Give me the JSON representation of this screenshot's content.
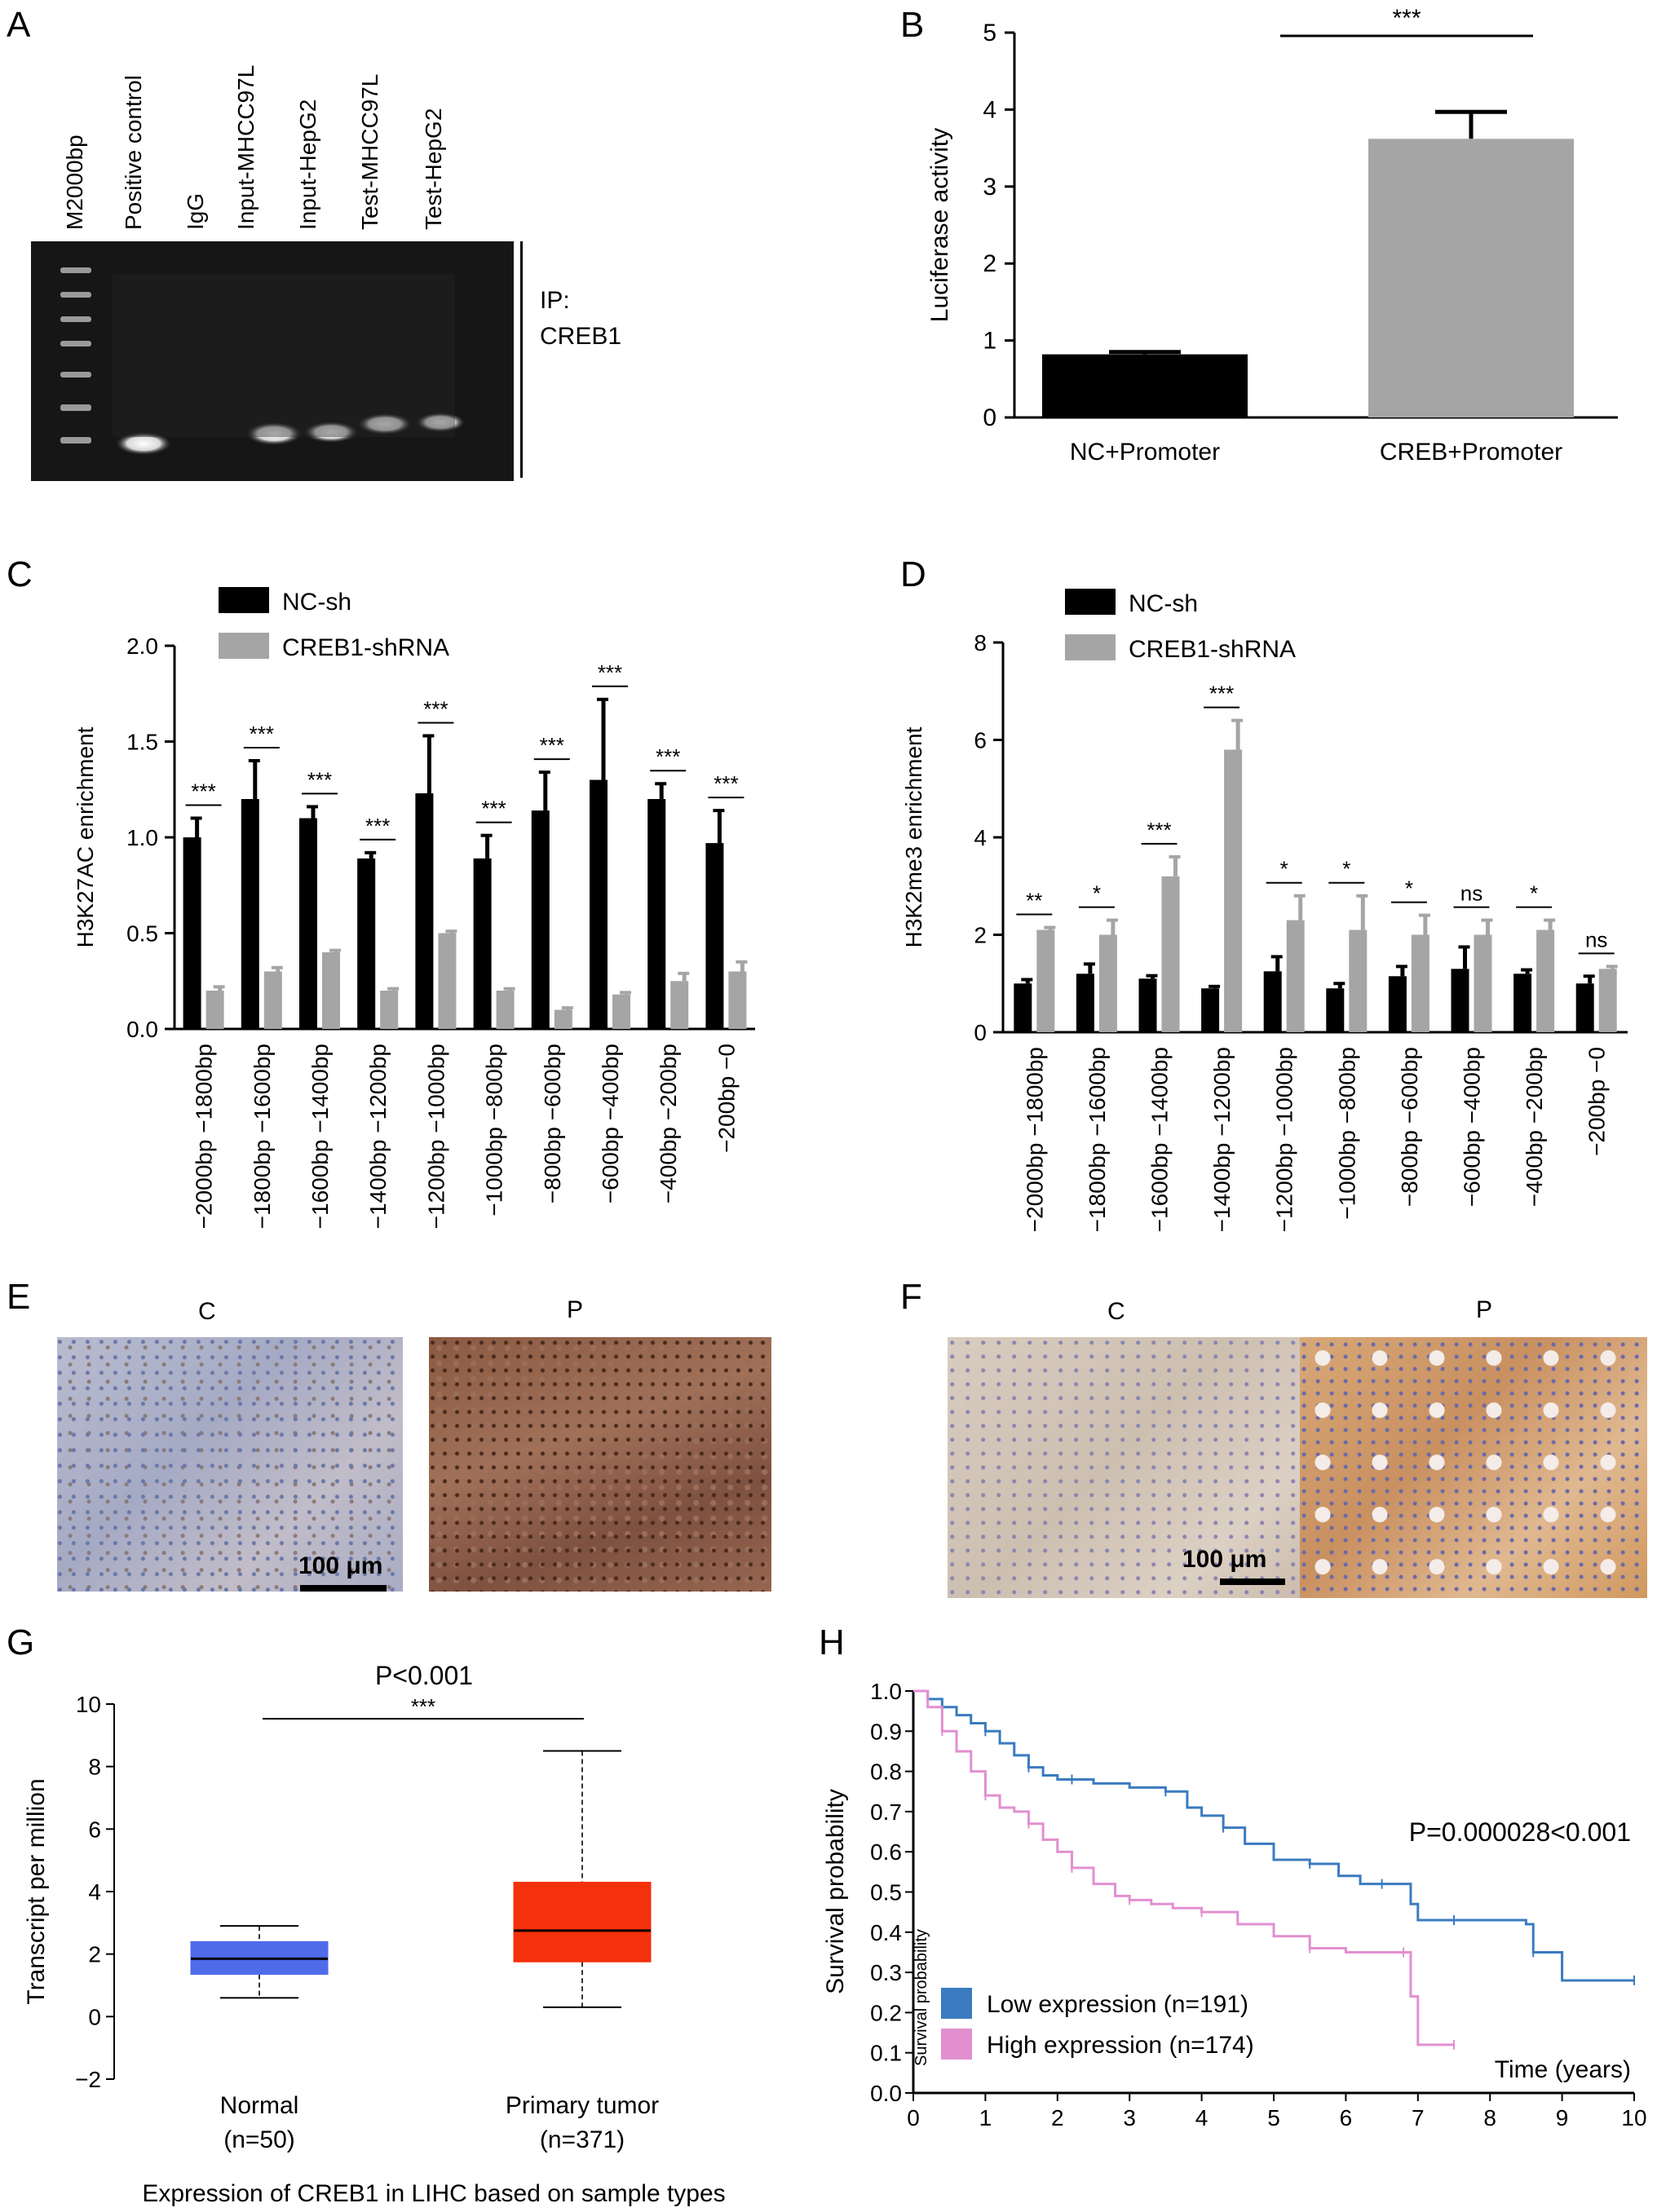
{
  "panels": {
    "A": {
      "letter": "A",
      "lanes": [
        "M2000bp",
        "Positive control",
        "IgG",
        "Input-MHCC97L",
        "Input-HepG2",
        "Test-MHCC97L",
        "Test-HepG2"
      ],
      "ip_label_line1": "IP:",
      "ip_label_line2": "CREB1"
    },
    "E": {
      "letter": "E",
      "caption_c": "C",
      "caption_p": "P",
      "scale": "100 μm"
    },
    "F": {
      "letter": "F",
      "caption_c": "C",
      "caption_p": "P",
      "scale": "100 μm"
    }
  },
  "colors": {
    "black_bar": "#000000",
    "grey_bar": "#a5a5a5",
    "normal_box": "#4f6bea",
    "tumor_box": "#f5300c",
    "low_curve": "#3a7bc0",
    "high_curve": "#e28fd0"
  },
  "chart_data": [
    {
      "id": "B",
      "letter": "B",
      "type": "bar",
      "categories": [
        "NC+Promoter",
        "CREB+Promoter"
      ],
      "values": [
        0.82,
        3.62
      ],
      "errors": [
        0.03,
        0.35
      ],
      "ylabel": "Luciferase activity",
      "ylim": [
        0,
        5
      ],
      "yticks": [
        0,
        1,
        2,
        3,
        4,
        5
      ],
      "significance": "***"
    },
    {
      "id": "C",
      "letter": "C",
      "type": "bar",
      "categories": [
        "−2000bp −1800bp",
        "−1800bp −1600bp",
        "−1600bp −1400bp",
        "−1400bp −1200bp",
        "−1200bp −1000bp",
        "−1000bp −800bp",
        "−800bp −600bp",
        "−600bp −400bp",
        "−400bp −200bp",
        "−200bp −0"
      ],
      "series": [
        {
          "name": "NC-sh",
          "values": [
            1.0,
            1.2,
            1.1,
            0.89,
            1.23,
            0.89,
            1.14,
            1.3,
            1.2,
            0.97
          ],
          "errors": [
            0.1,
            0.2,
            0.06,
            0.03,
            0.3,
            0.12,
            0.2,
            0.42,
            0.08,
            0.17
          ]
        },
        {
          "name": "CREB1-shRNA",
          "values": [
            0.2,
            0.3,
            0.4,
            0.2,
            0.5,
            0.2,
            0.1,
            0.18,
            0.25,
            0.3
          ],
          "errors": [
            0.02,
            0.02,
            0.01,
            0.01,
            0.01,
            0.01,
            0.01,
            0.01,
            0.04,
            0.05
          ]
        }
      ],
      "ylabel": "H3K27AC enrichment",
      "ylim": [
        0,
        2
      ],
      "yticks": [
        "0.0",
        "0.5",
        "1.0",
        "1.5",
        "2.0"
      ],
      "significance": [
        "***",
        "***",
        "***",
        "***",
        "***",
        "***",
        "***",
        "***",
        "***",
        "***"
      ]
    },
    {
      "id": "D",
      "letter": "D",
      "type": "bar",
      "categories": [
        "−2000bp −1800bp",
        "−1800bp −1600bp",
        "−1600bp −1400bp",
        "−1400bp −1200bp",
        "−1200bp −1000bp",
        "−1000bp −800bp",
        "−800bp −600bp",
        "−600bp −400bp",
        "−400bp −200bp",
        "−200bp −0"
      ],
      "series": [
        {
          "name": "NC-sh",
          "values": [
            1.0,
            1.2,
            1.1,
            0.9,
            1.25,
            0.9,
            1.15,
            1.3,
            1.2,
            1.0
          ],
          "errors": [
            0.08,
            0.2,
            0.06,
            0.04,
            0.3,
            0.1,
            0.2,
            0.45,
            0.08,
            0.15
          ]
        },
        {
          "name": "CREB1-shRNA",
          "values": [
            2.1,
            2.0,
            3.2,
            5.8,
            2.3,
            2.1,
            2.0,
            2.0,
            2.1,
            1.3
          ],
          "errors": [
            0.05,
            0.3,
            0.4,
            0.6,
            0.5,
            0.7,
            0.4,
            0.3,
            0.2,
            0.05
          ]
        }
      ],
      "ylabel": "H3K2me3 enrichment",
      "ylim": [
        0,
        8
      ],
      "yticks": [
        0,
        2,
        4,
        6,
        8
      ],
      "significance": [
        "**",
        "*",
        "***",
        "***",
        "*",
        "*",
        "*",
        "ns",
        "*",
        "ns"
      ]
    },
    {
      "id": "G",
      "letter": "G",
      "type": "box",
      "categories": [
        "Normal",
        "Primary tumor"
      ],
      "category_counts": [
        "(n=50)",
        "(n=371)"
      ],
      "boxes": [
        {
          "min": 0.6,
          "q1": 1.35,
          "median": 1.85,
          "q3": 2.4,
          "max": 2.9
        },
        {
          "min": 0.3,
          "q1": 1.75,
          "median": 2.75,
          "q3": 4.3,
          "max": 8.5
        }
      ],
      "ylabel": "Transcript per million",
      "ylim": [
        -2,
        10
      ],
      "yticks": [
        -2,
        0,
        2,
        4,
        6,
        8,
        10
      ],
      "xlabel": "Expression of CREB1 in LIHC based on sample types",
      "pvalue": "P<0.001",
      "significance": "***"
    },
    {
      "id": "H",
      "letter": "H",
      "type": "line",
      "ylabel": "Survival probability",
      "inner_ylabel": "Survival probability",
      "xlabel": "Time (years)",
      "xlim": [
        0,
        10
      ],
      "ylim": [
        0,
        1
      ],
      "xticks": [
        0,
        1,
        2,
        3,
        4,
        5,
        6,
        7,
        8,
        9,
        10
      ],
      "yticks": [
        "0.0",
        "0.1",
        "0.2",
        "0.3",
        "0.4",
        "0.5",
        "0.6",
        "0.7",
        "0.8",
        "0.9",
        "1.0"
      ],
      "pvalue": "P=0.000028<0.001",
      "series": [
        {
          "name": "Low expression (n=191)",
          "x": [
            0,
            0.2,
            0.4,
            0.6,
            0.8,
            1.0,
            1.2,
            1.4,
            1.6,
            1.8,
            2.0,
            2.2,
            2.5,
            3.0,
            3.5,
            3.8,
            4.0,
            4.3,
            4.6,
            5.0,
            5.5,
            5.9,
            6.2,
            6.5,
            6.9,
            7.0,
            7.5,
            8.0,
            8.5,
            8.6,
            9.0,
            9.5,
            10.0
          ],
          "y": [
            1.0,
            0.98,
            0.96,
            0.94,
            0.92,
            0.9,
            0.87,
            0.84,
            0.81,
            0.79,
            0.78,
            0.78,
            0.77,
            0.76,
            0.75,
            0.71,
            0.69,
            0.66,
            0.62,
            0.58,
            0.57,
            0.54,
            0.52,
            0.52,
            0.47,
            0.43,
            0.43,
            0.43,
            0.42,
            0.35,
            0.28,
            0.28,
            0.28
          ]
        },
        {
          "name": "High expression (n=174)",
          "x": [
            0,
            0.2,
            0.4,
            0.6,
            0.8,
            1.0,
            1.2,
            1.4,
            1.6,
            1.8,
            2.0,
            2.2,
            2.5,
            2.8,
            3.0,
            3.3,
            3.6,
            4.0,
            4.5,
            5.0,
            5.5,
            6.0,
            6.5,
            6.8,
            6.9,
            7.0,
            7.5
          ],
          "y": [
            1.0,
            0.96,
            0.9,
            0.85,
            0.8,
            0.74,
            0.71,
            0.7,
            0.67,
            0.63,
            0.6,
            0.56,
            0.52,
            0.49,
            0.48,
            0.47,
            0.46,
            0.45,
            0.42,
            0.39,
            0.36,
            0.35,
            0.35,
            0.35,
            0.24,
            0.12,
            0.12
          ]
        }
      ]
    }
  ]
}
